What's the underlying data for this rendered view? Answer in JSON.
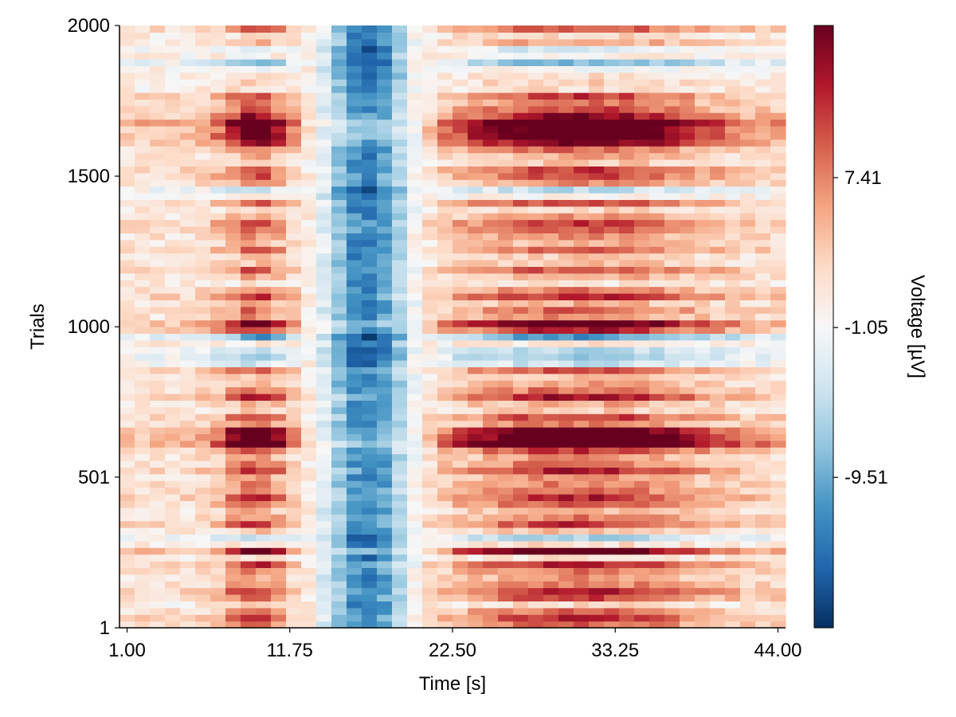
{
  "chart_data": {
    "type": "heatmap",
    "title": "",
    "xlabel": "Time [s]",
    "ylabel": "Trials",
    "x_tick_labels": [
      "1.00",
      "11.75",
      "22.50",
      "33.25",
      "44.00"
    ],
    "x_ticks": [
      1.0,
      11.75,
      22.5,
      33.25,
      44.0
    ],
    "y_tick_labels": [
      "1",
      "501",
      "1000",
      "1500",
      "2000"
    ],
    "y_ticks": [
      1,
      501,
      1000,
      1500,
      2000
    ],
    "xlim": [
      0.5,
      44.5
    ],
    "ylim": [
      1,
      2000
    ],
    "n_time_bins": 44,
    "n_trial_bands": 90,
    "colorbar": {
      "label": "Voltage [µV]",
      "colormap": "RdBu reversed (blue = negative, red = positive)",
      "tick_labels": [
        "-9.51",
        "-1.05",
        "7.41"
      ],
      "ticks": [
        -9.51,
        -1.05,
        7.41
      ],
      "range": [
        -18.0,
        16.0
      ]
    },
    "description_of_pattern": "Positive voltage bands around 8-11 s and 22-44 s; negative (blue) region around 13-20 s across most trials; strong positive stripe near trial 620 and 1650."
  },
  "colors": {
    "negative_extreme": "#053061",
    "neutral": "#f7f7f7",
    "positive_extreme": "#67001f"
  }
}
